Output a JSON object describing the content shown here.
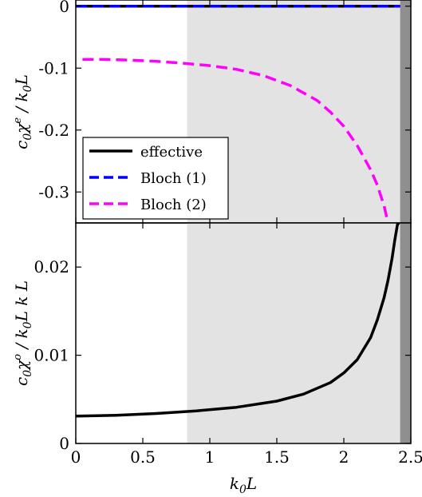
{
  "chart_data": [
    {
      "type": "line",
      "panel": "top",
      "ylabel": "c₀χᵉ / k₀L",
      "xlim": [
        0,
        2.5
      ],
      "ylim": [
        -0.35,
        0.01
      ],
      "yticks": [
        0,
        -0.1,
        -0.2,
        -0.3
      ],
      "ytick_labels": [
        "0",
        "-0.1",
        "-0.2",
        "-0.3"
      ],
      "legend": {
        "placement": "bottom-left"
      },
      "shaded_regions": [
        {
          "x0": 0.83,
          "x1": 2.42,
          "color": "#e3e3e3"
        },
        {
          "x0": 2.42,
          "x1": 2.5,
          "color": "#8f8f8f"
        }
      ],
      "series": [
        {
          "name": "effective",
          "color": "#000000",
          "style": "solid",
          "x": [
            0,
            0.5,
            1.0,
            1.5,
            2.0,
            2.42
          ],
          "y": [
            0,
            0,
            0,
            0,
            0,
            0
          ]
        },
        {
          "name": "Bloch (1)",
          "color": "#0000ff",
          "style": "dashed",
          "x": [
            0,
            0.5,
            1.0,
            1.5,
            2.0,
            2.42
          ],
          "y": [
            0,
            0,
            0,
            0,
            0,
            0
          ]
        },
        {
          "name": "Bloch (2)",
          "color": "#ff00ff",
          "style": "dashed",
          "x": [
            0.05,
            0.2,
            0.4,
            0.6,
            0.8,
            1.0,
            1.2,
            1.4,
            1.6,
            1.8,
            1.9,
            2.0,
            2.1,
            2.2,
            2.25,
            2.3,
            2.33
          ],
          "y": [
            -0.086,
            -0.086,
            -0.087,
            -0.089,
            -0.092,
            -0.096,
            -0.102,
            -0.112,
            -0.128,
            -0.152,
            -0.171,
            -0.194,
            -0.225,
            -0.264,
            -0.289,
            -0.322,
            -0.35
          ]
        }
      ]
    },
    {
      "type": "line",
      "panel": "bottom",
      "ylabel": "c₀χᵒ / k₀Lk L",
      "xlabel": "k₀L",
      "xlim": [
        0,
        2.5
      ],
      "ylim": [
        0,
        0.025
      ],
      "xticks": [
        0,
        0.5,
        1,
        1.5,
        2,
        2.5
      ],
      "xtick_labels": [
        "0",
        "0.5",
        "1",
        "1.5",
        "2",
        "2.5"
      ],
      "yticks": [
        0,
        0.01,
        0.02
      ],
      "ytick_labels": [
        "0",
        "0.01",
        "0.02"
      ],
      "shaded_regions": [
        {
          "x0": 0.83,
          "x1": 2.42,
          "color": "#e3e3e3"
        },
        {
          "x0": 2.42,
          "x1": 2.5,
          "color": "#8f8f8f"
        }
      ],
      "series": [
        {
          "color": "#000000",
          "style": "solid",
          "x": [
            0,
            0.3,
            0.6,
            0.9,
            1.2,
            1.5,
            1.7,
            1.9,
            2.0,
            2.1,
            2.2,
            2.25,
            2.3,
            2.33,
            2.36,
            2.38,
            2.4,
            2.41
          ],
          "y": [
            0.0031,
            0.0032,
            0.0034,
            0.0037,
            0.0041,
            0.0048,
            0.0056,
            0.0069,
            0.008,
            0.0095,
            0.012,
            0.014,
            0.0165,
            0.0185,
            0.021,
            0.023,
            0.0248,
            0.025
          ]
        }
      ]
    }
  ]
}
